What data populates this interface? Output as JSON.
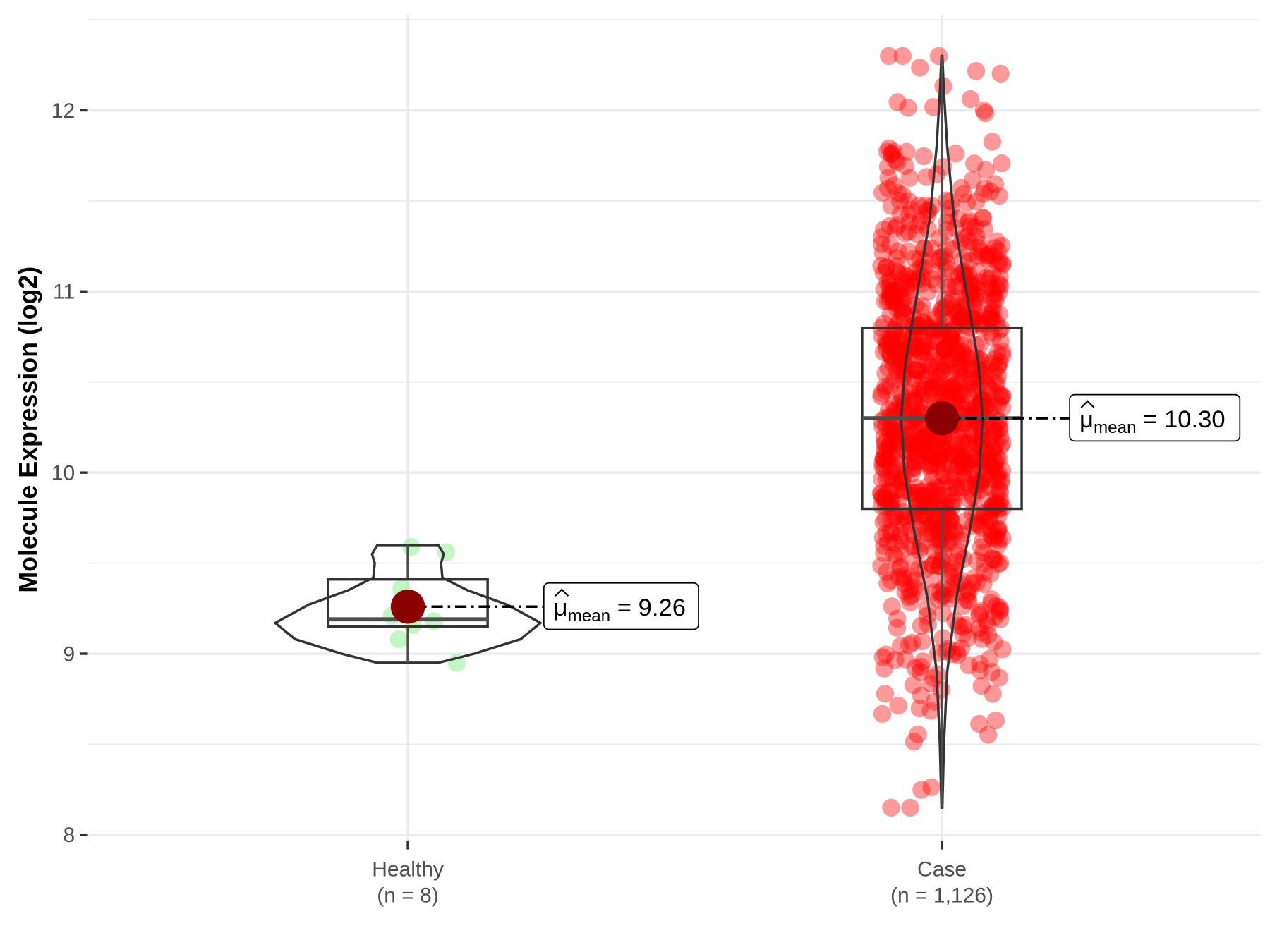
{
  "chart_data": {
    "type": "violin-box-jitter",
    "title": "",
    "xlabel": "",
    "ylabel": "Molecule Expression (log2)",
    "ylim": [
      7.95,
      12.55
    ],
    "yticks": [
      8,
      9,
      10,
      11,
      12
    ],
    "grid": true,
    "groups": [
      {
        "name": "Healthy",
        "n_label": "(n = 8)",
        "color": "#90EE90",
        "box": {
          "q1": 9.15,
          "median": 9.19,
          "q3": 9.41,
          "whisker_low": 8.95,
          "whisker_high": 9.6
        },
        "mean": 9.26,
        "mean_label": "9.26",
        "points": [
          9.59,
          9.56,
          9.36,
          9.21,
          9.18,
          9.16,
          9.08,
          8.95
        ],
        "violin": [
          [
            8.95,
            0.23
          ],
          [
            9.0,
            0.5
          ],
          [
            9.08,
            0.85
          ],
          [
            9.17,
            1.0
          ],
          [
            9.27,
            0.75
          ],
          [
            9.35,
            0.45
          ],
          [
            9.42,
            0.26
          ],
          [
            9.5,
            0.25
          ],
          [
            9.55,
            0.27
          ],
          [
            9.6,
            0.23
          ]
        ]
      },
      {
        "name": "Case",
        "n_label": "(n = 1,126)",
        "color": "#FF0000",
        "n": 1126,
        "box": {
          "q1": 9.8,
          "median": 10.3,
          "q3": 10.8,
          "whisker_low": 8.15,
          "whisker_high": 12.3
        },
        "mean": 10.3,
        "mean_label": "10.30",
        "sd": 0.72,
        "violin": [
          [
            8.15,
            0.01
          ],
          [
            8.5,
            0.05
          ],
          [
            8.9,
            0.13
          ],
          [
            9.3,
            0.35
          ],
          [
            9.7,
            0.7
          ],
          [
            10.0,
            0.92
          ],
          [
            10.3,
            1.0
          ],
          [
            10.6,
            0.9
          ],
          [
            11.0,
            0.6
          ],
          [
            11.4,
            0.3
          ],
          [
            11.8,
            0.13
          ],
          [
            12.1,
            0.05
          ],
          [
            12.3,
            0.01
          ]
        ]
      }
    ],
    "mean_symbol": "μ",
    "mean_subscript": "mean",
    "mean_equals": "="
  }
}
